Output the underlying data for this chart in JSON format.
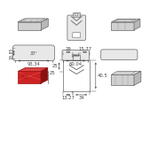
{
  "bg_color": "#ffffff",
  "lc": "#666666",
  "dc": "#444444",
  "red_fill": "#cc2222",
  "red_edge": "#991111",
  "red_top": "#dd4444",
  "red_side": "#881111",
  "gray_fill": "#e8e8e8",
  "gray_mid": "#d0d0d0",
  "gray_dark": "#b8b8b8",
  "tc": "#444444",
  "ts": 3.8,
  "dims": {
    "w1": "93.34",
    "w2": "60.04",
    "h1": "18.85",
    "d1": "29",
    "d2": "15.77",
    "d3": "13.27",
    "d4": "34",
    "d5": "40.5",
    "d6": "25"
  }
}
